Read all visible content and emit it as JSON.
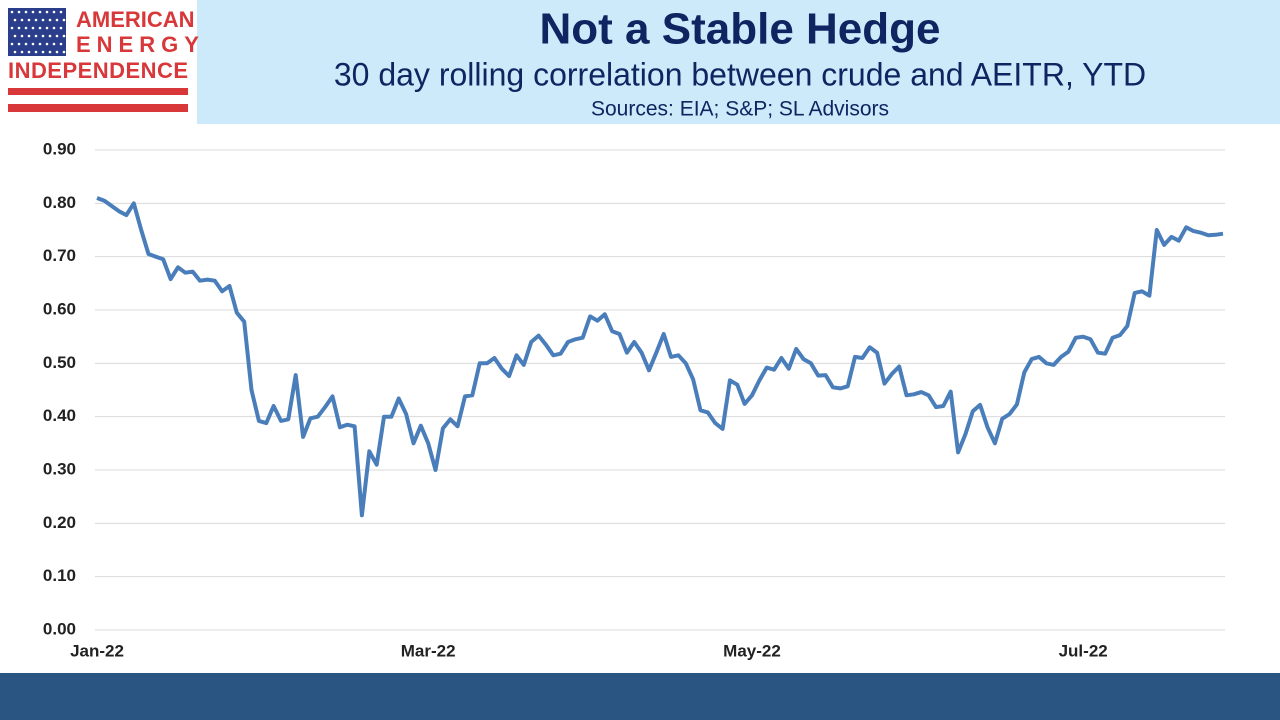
{
  "logo": [
    "AMERICAN",
    "ENERGY",
    "INDEPENDENCE"
  ],
  "chart_data": {
    "type": "line",
    "title": "Not a Stable Hedge",
    "subtitle": "30 day rolling correlation between crude and AEITR, YTD",
    "source": "Sources: EIA; S&P; SL Advisors",
    "categories": [
      "Jan-22",
      null,
      null,
      null,
      null,
      null,
      null,
      null,
      null,
      null,
      null,
      null,
      null,
      null,
      null,
      null,
      null,
      null,
      null,
      null,
      null,
      null,
      null,
      null,
      null,
      null,
      null,
      null,
      null,
      null,
      null,
      null,
      null,
      null,
      null,
      null,
      null,
      null,
      null,
      null,
      null,
      null,
      null,
      null,
      null,
      "Mar-22",
      null,
      null,
      null,
      null,
      null,
      null,
      null,
      null,
      null,
      null,
      null,
      null,
      null,
      null,
      null,
      null,
      null,
      null,
      null,
      null,
      null,
      null,
      null,
      null,
      null,
      null,
      null,
      null,
      null,
      null,
      null,
      null,
      null,
      null,
      null,
      null,
      null,
      null,
      null,
      null,
      null,
      null,
      null,
      "May-22",
      null,
      null,
      null,
      null,
      null,
      null,
      null,
      null,
      null,
      null,
      null,
      null,
      null,
      null,
      null,
      null,
      null,
      null,
      null,
      null,
      null,
      null,
      null,
      null,
      null,
      null,
      null,
      null,
      null,
      null,
      null,
      null,
      null,
      null,
      null,
      null,
      null,
      null,
      null,
      null,
      null,
      null,
      null,
      null,
      "Jul-22",
      null,
      null,
      null,
      null,
      null,
      null,
      null,
      null,
      null,
      null,
      null,
      null,
      null,
      null,
      null,
      null,
      null,
      null,
      null
    ],
    "series": [
      {
        "name": "30 day rolling correlation",
        "color": "#4a7ebb",
        "values": [
          0.81,
          0.805,
          0.795,
          0.785,
          0.778,
          0.8,
          0.75,
          0.705,
          0.7,
          0.695,
          0.658,
          0.68,
          0.67,
          0.672,
          0.655,
          0.657,
          0.655,
          0.635,
          0.645,
          0.595,
          0.578,
          0.45,
          0.392,
          0.388,
          0.42,
          0.392,
          0.395,
          0.478,
          0.362,
          0.397,
          0.4,
          0.418,
          0.438,
          0.38,
          0.385,
          0.382,
          0.215,
          0.335,
          0.31,
          0.4,
          0.4,
          0.434,
          0.405,
          0.35,
          0.383,
          0.35,
          0.3,
          0.378,
          0.395,
          0.382,
          0.438,
          0.44,
          0.5,
          0.5,
          0.51,
          0.49,
          0.476,
          0.515,
          0.497,
          0.54,
          0.552,
          0.535,
          0.515,
          0.518,
          0.54,
          0.545,
          0.548,
          0.588,
          0.58,
          0.592,
          0.56,
          0.555,
          0.52,
          0.54,
          0.52,
          0.487,
          0.52,
          0.555,
          0.512,
          0.515,
          0.5,
          0.47,
          0.412,
          0.408,
          0.388,
          0.377,
          0.468,
          0.46,
          0.424,
          0.44,
          0.468,
          0.492,
          0.488,
          0.51,
          0.49,
          0.527,
          0.508,
          0.5,
          0.477,
          0.478,
          0.455,
          0.453,
          0.457,
          0.512,
          0.51,
          0.53,
          0.52,
          0.462,
          0.48,
          0.494,
          0.44,
          0.442,
          0.446,
          0.44,
          0.418,
          0.42,
          0.447,
          0.333,
          0.367,
          0.41,
          0.422,
          0.38,
          0.35,
          0.396,
          0.405,
          0.423,
          0.483,
          0.508,
          0.512,
          0.5,
          0.497,
          0.512,
          0.522,
          0.548,
          0.55,
          0.545,
          0.52,
          0.518,
          0.548,
          0.553,
          0.57,
          0.632,
          0.635,
          0.627,
          0.75,
          0.722,
          0.737,
          0.73,
          0.755,
          0.748,
          0.745,
          0.74,
          0.741,
          0.743
        ]
      }
    ],
    "ylim": [
      0,
      0.9
    ],
    "yticks": [
      {
        "value": 0,
        "label": "0.00"
      },
      {
        "value": 0.1,
        "label": "0.10"
      },
      {
        "value": 0.2,
        "label": "0.20"
      },
      {
        "value": 0.3,
        "label": "0.30"
      },
      {
        "value": 0.4,
        "label": "0.40"
      },
      {
        "value": 0.5,
        "label": "0.50"
      },
      {
        "value": 0.6,
        "label": "0.60"
      },
      {
        "value": 0.7,
        "label": "0.70"
      },
      {
        "value": 0.8,
        "label": "0.80"
      },
      {
        "value": 0.9,
        "label": "0.90"
      }
    ],
    "grid": true
  }
}
